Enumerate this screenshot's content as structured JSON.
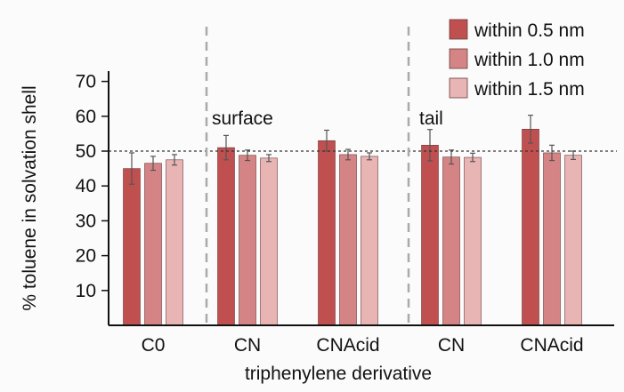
{
  "chart_data": {
    "type": "bar",
    "title": "",
    "xlabel": "triphenylene derivative",
    "ylabel": "% toluene in solvation shell",
    "categories": [
      "C0",
      "CN",
      "CNAcid",
      "CN",
      "CNAcid"
    ],
    "group_annotations": [
      "surface",
      "tail"
    ],
    "ylim": [
      0,
      75
    ],
    "yticks": [
      10,
      20,
      30,
      40,
      50,
      60,
      70
    ],
    "reference_line": 50,
    "legend_position": "top-right",
    "grid": false,
    "series": [
      {
        "name": "within 0.5 nm",
        "color": "#c05050",
        "values": [
          45.0,
          51.0,
          53.0,
          51.7,
          56.3
        ],
        "errors": [
          4.5,
          3.5,
          3.0,
          4.5,
          4.0
        ]
      },
      {
        "name": "within 1.0 nm",
        "color": "#d48484",
        "values": [
          46.5,
          48.8,
          49.0,
          48.3,
          49.5
        ],
        "errors": [
          2.0,
          1.5,
          1.5,
          2.0,
          2.2
        ]
      },
      {
        "name": "within 1.5 nm",
        "color": "#e8b4b4",
        "values": [
          47.5,
          48.0,
          48.5,
          48.2,
          48.8
        ],
        "errors": [
          1.5,
          1.0,
          1.0,
          1.2,
          1.2
        ]
      }
    ]
  }
}
